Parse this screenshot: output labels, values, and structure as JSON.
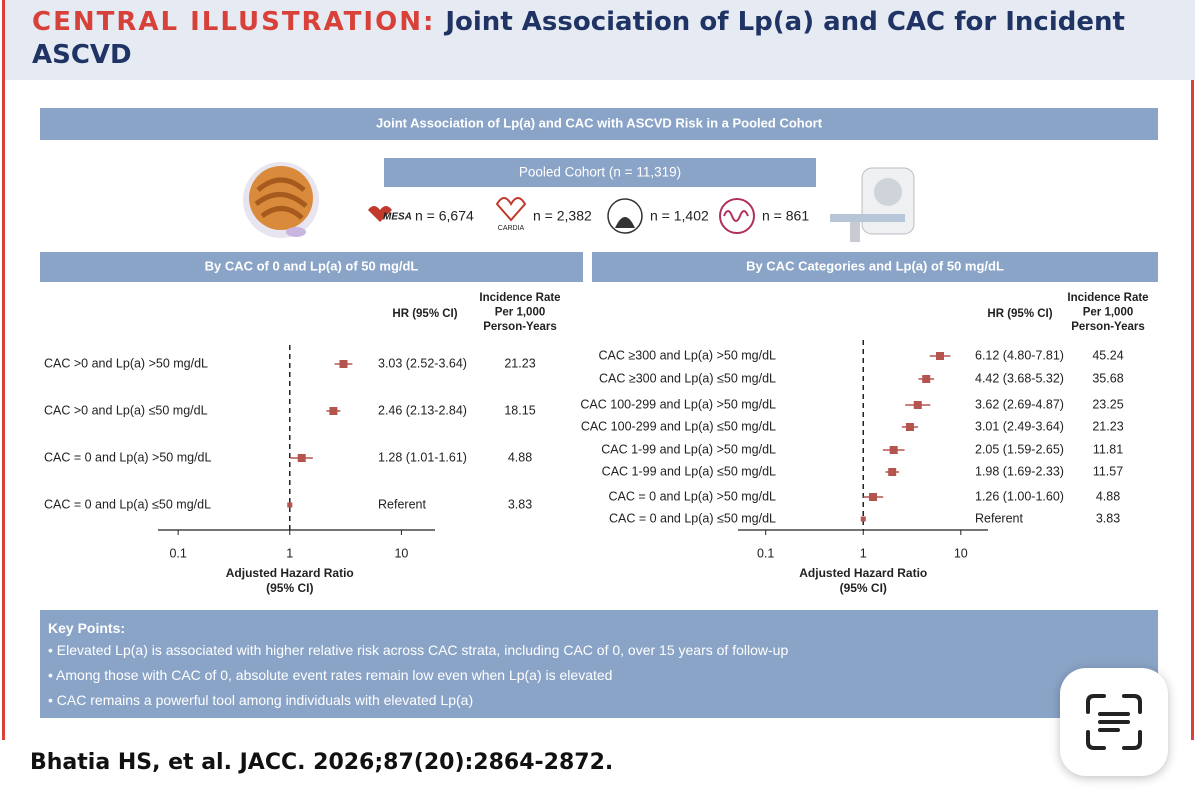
{
  "header": {
    "label": "CENTRAL ILLUSTRATION:",
    "title": "Joint Association of Lp(a) and CAC for Incident ASCVD"
  },
  "banner": "Joint Association of Lp(a) and CAC with ASCVD Risk in a Pooled Cohort",
  "cohort": {
    "title": "Pooled Cohort (n = 11,319)",
    "studies": [
      {
        "logo": "MESA",
        "n": "n = 6,674"
      },
      {
        "logo": "CARDIA",
        "n": "n = 2,382"
      },
      {
        "n": "n = 1,402"
      },
      {
        "n": "n = 861"
      }
    ]
  },
  "chart_data": [
    {
      "type": "forest",
      "title": "By CAC of 0 and Lp(a) of 50 mg/dL",
      "color": "#b5534f",
      "hr_header": "HR (95% CI)",
      "rate_header": [
        "Incidence Rate",
        "Per 1,000",
        "Person-Years"
      ],
      "xlabel": [
        "Adjusted Hazard Ratio",
        "(95% CI)"
      ],
      "log_scale": true,
      "reference_line": 1,
      "xlim": [
        0.066,
        20
      ],
      "xticks": [
        0.1,
        1,
        10
      ],
      "categories": [
        "CAC >0 and Lp(a) >50 mg/dL",
        "CAC >0 and Lp(a) ≤50 mg/dL",
        "CAC = 0 and Lp(a) >50 mg/dL",
        "CAC = 0 and Lp(a) ≤50 mg/dL"
      ],
      "values": [
        3.03,
        2.46,
        1.28,
        1
      ],
      "ci_low": [
        2.52,
        2.13,
        1.01,
        null
      ],
      "ci_high": [
        3.64,
        2.84,
        1.61,
        null
      ],
      "value_labels": [
        "3.03 (2.52-3.64)",
        "2.46 (2.13-2.84)",
        "1.28 (1.01-1.61)",
        "Referent"
      ],
      "rates": [
        21.23,
        18.15,
        4.88,
        3.83
      ]
    },
    {
      "type": "forest",
      "title": "By CAC Categories and Lp(a) of 50 mg/dL",
      "color": "#b5534f",
      "hr_header": "HR (95% CI)",
      "rate_header": [
        "Incidence Rate",
        "Per 1,000",
        "Person-Years"
      ],
      "xlabel": [
        "Adjusted Hazard Ratio",
        "(95% CI)"
      ],
      "log_scale": true,
      "reference_line": 1,
      "xlim": [
        0.052,
        19
      ],
      "xticks": [
        0.1,
        1,
        10
      ],
      "categories": [
        "CAC ≥300 and Lp(a) >50 mg/dL",
        "CAC ≥300 and Lp(a) ≤50 mg/dL",
        "CAC 100-299 and Lp(a) >50 mg/dL",
        "CAC 100-299 and Lp(a) ≤50 mg/dL",
        "CAC 1-99 and Lp(a) >50 mg/dL",
        "CAC 1-99 and Lp(a) ≤50 mg/dL",
        "CAC = 0 and Lp(a) >50 mg/dL",
        "CAC = 0 and Lp(a) ≤50 mg/dL"
      ],
      "values": [
        6.12,
        4.42,
        3.62,
        3.01,
        2.05,
        1.98,
        1.26,
        1
      ],
      "ci_low": [
        4.8,
        3.68,
        2.69,
        2.49,
        1.59,
        1.69,
        1.0,
        null
      ],
      "ci_high": [
        7.81,
        5.32,
        4.87,
        3.64,
        2.65,
        2.33,
        1.6,
        null
      ],
      "value_labels": [
        "6.12 (4.80-7.81)",
        "4.42 (3.68-5.32)",
        "3.62 (2.69-4.87)",
        "3.01 (2.49-3.64)",
        "2.05 (1.59-2.65)",
        "1.98 (1.69-2.33)",
        "1.26 (1.00-1.60)",
        "Referent"
      ],
      "rates": [
        45.24,
        35.68,
        23.25,
        21.23,
        11.81,
        11.57,
        4.88,
        3.83
      ]
    }
  ],
  "key_points": {
    "title": "Key Points:",
    "items": [
      "Elevated Lp(a) is associated with higher relative risk across CAC strata, including CAC of 0, over 15 years of follow-up",
      "Among those with CAC of 0, absolute event rates remain low even when Lp(a) is elevated",
      "CAC remains a powerful tool among individuals with elevated Lp(a)"
    ]
  },
  "citation": "Bhatia HS, et al. JACC. 2026;87(20):2864-2872."
}
